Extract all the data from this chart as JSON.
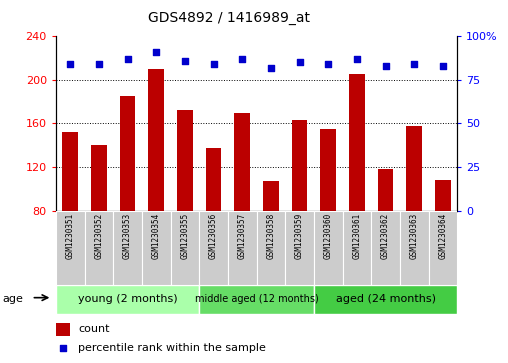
{
  "title": "GDS4892 / 1416989_at",
  "samples": [
    "GSM1230351",
    "GSM1230352",
    "GSM1230353",
    "GSM1230354",
    "GSM1230355",
    "GSM1230356",
    "GSM1230357",
    "GSM1230358",
    "GSM1230359",
    "GSM1230360",
    "GSM1230361",
    "GSM1230362",
    "GSM1230363",
    "GSM1230364"
  ],
  "counts": [
    152,
    140,
    185,
    210,
    172,
    137,
    170,
    107,
    163,
    155,
    205,
    118,
    158,
    108
  ],
  "percentiles": [
    84,
    84,
    87,
    91,
    86,
    84,
    87,
    82,
    85,
    84,
    87,
    83,
    84,
    83
  ],
  "ylim_left": [
    80,
    240
  ],
  "ylim_right": [
    0,
    100
  ],
  "yticks_left": [
    80,
    120,
    160,
    200,
    240
  ],
  "yticks_right": [
    0,
    25,
    50,
    75,
    100
  ],
  "bar_color": "#BB0000",
  "dot_color": "#0000CC",
  "group_colors": [
    "#AAFFAA",
    "#66DD66",
    "#44CC44"
  ],
  "groups": [
    {
      "label": "young (2 months)",
      "start": 0,
      "end": 5
    },
    {
      "label": "middle aged (12 months)",
      "start": 5,
      "end": 9
    },
    {
      "label": "aged (24 months)",
      "start": 9,
      "end": 14
    }
  ],
  "legend_count_label": "count",
  "legend_pct_label": "percentile rank within the sample",
  "age_label": "age",
  "title_fontsize": 10,
  "tick_fontsize": 8,
  "label_fontsize": 5.5,
  "group_fontsize": 8,
  "legend_fontsize": 8
}
